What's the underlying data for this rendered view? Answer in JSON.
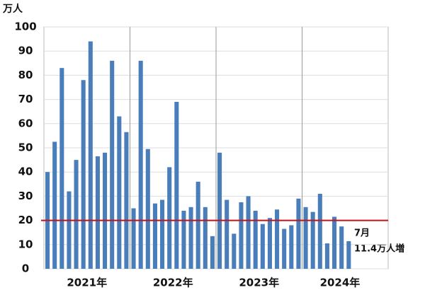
{
  "chart_data": {
    "type": "bar",
    "y_unit": "万人",
    "categories": [
      "2021年",
      null,
      null,
      null,
      null,
      null,
      null,
      null,
      null,
      null,
      null,
      null,
      "2022年",
      null,
      null,
      null,
      null,
      null,
      null,
      null,
      null,
      null,
      null,
      null,
      "2023年",
      null,
      null,
      null,
      null,
      null,
      null,
      null,
      null,
      null,
      null,
      null,
      "2024年",
      null,
      null,
      null,
      null,
      null,
      null
    ],
    "values": [
      40,
      52.5,
      83,
      32,
      45,
      78,
      94,
      46.5,
      48,
      86,
      63,
      56.5,
      25,
      86,
      49.5,
      27,
      28.5,
      42,
      69,
      24,
      25.5,
      36,
      25.5,
      13.5,
      48,
      28.5,
      14.5,
      27.5,
      30,
      24,
      18.5,
      21,
      24.5,
      16.5,
      18,
      29,
      25.5,
      23.5,
      31,
      10.5,
      21.5,
      17.5,
      11.4
    ],
    "color": "#4a7ebb",
    "ylim": [
      0,
      100
    ],
    "yticks": [
      0,
      10,
      20,
      30,
      40,
      50,
      60,
      70,
      80,
      90,
      100
    ],
    "grid": true,
    "reference_line": {
      "value": 20,
      "color": "#c0141c"
    },
    "annotations": [
      "7月",
      "11.4万人増"
    ]
  }
}
